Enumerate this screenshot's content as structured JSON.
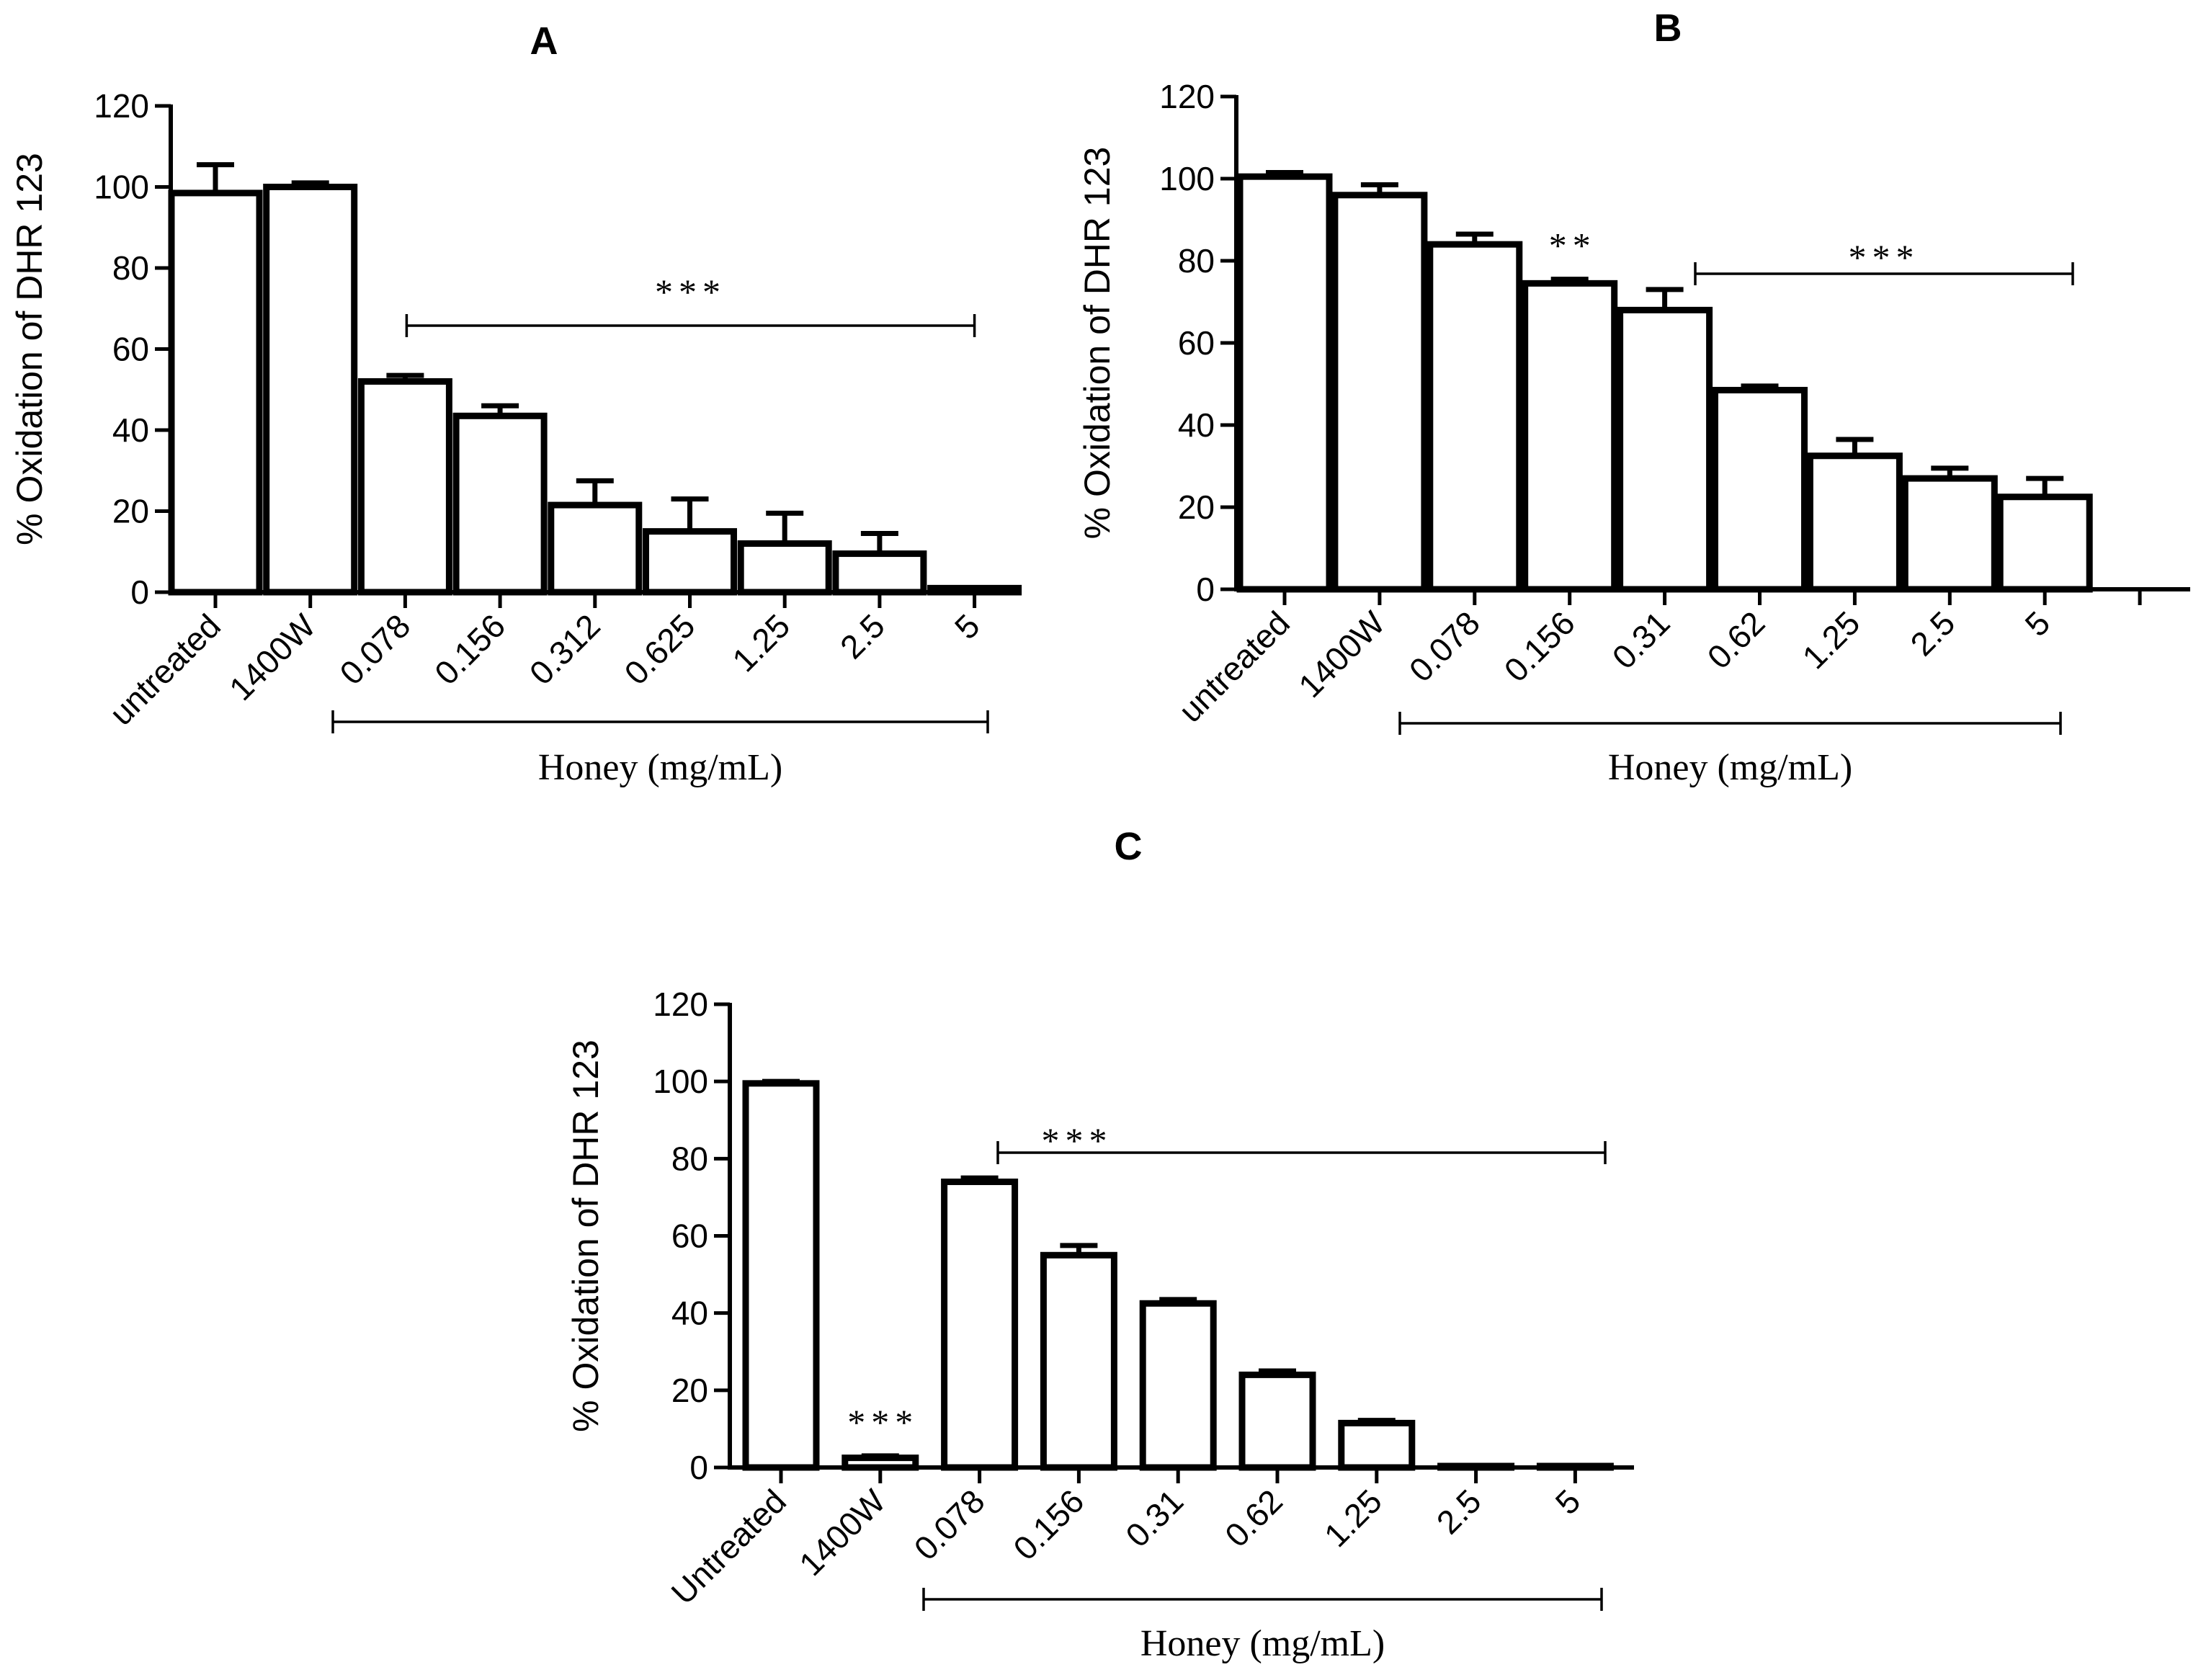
{
  "chart_data": [
    {
      "type": "bar",
      "panel": "A",
      "ylabel": "% Oxidation of DHR 123",
      "ylim": [
        0,
        120
      ],
      "yticks": [
        0,
        20,
        40,
        60,
        80,
        100,
        120
      ],
      "categories": [
        "untreated",
        "1400W",
        "0.078",
        "0.156",
        "0.312",
        "0.625",
        "1.25",
        "2.5",
        "5"
      ],
      "values": [
        98.5,
        100,
        52,
        43.5,
        21.5,
        15,
        12,
        9.5,
        1
      ],
      "errors": [
        7,
        1,
        1.5,
        2.5,
        6,
        8,
        7.5,
        5,
        0
      ],
      "group_label": "Honey (mg/mL)",
      "group_range": [
        2,
        8
      ],
      "significance": [
        {
          "label": "***",
          "from": 2,
          "to": 8
        }
      ]
    },
    {
      "type": "bar",
      "panel": "B",
      "ylabel": "% Oxidation of DHR 123",
      "ylim": [
        0,
        120
      ],
      "yticks": [
        0,
        20,
        40,
        60,
        80,
        100,
        120
      ],
      "categories": [
        "untreated",
        "1400W",
        "0.078",
        "0.156",
        "0.31",
        "0.62",
        "1.25",
        "2.5",
        "5",
        ""
      ],
      "values": [
        100.5,
        96,
        84,
        74.5,
        68,
        48.5,
        32.5,
        27,
        22.5,
        null
      ],
      "errors": [
        1,
        2.5,
        2.5,
        1,
        5,
        1,
        4,
        2.5,
        4.5,
        null
      ],
      "group_label": "Honey (mg/mL)",
      "group_range": [
        2,
        8
      ],
      "significance": [
        {
          "label": "**",
          "at": 3
        },
        {
          "label": "***",
          "from": 4.5,
          "to": 8
        }
      ]
    },
    {
      "type": "bar",
      "panel": "C",
      "ylabel": "% Oxidation of DHR 123",
      "ylim": [
        0,
        120
      ],
      "yticks": [
        0,
        20,
        40,
        60,
        80,
        100,
        120
      ],
      "categories": [
        "Untreated",
        "1400W",
        "0.078",
        "0.156",
        "0.31",
        "0.62",
        "1.25",
        "2.5",
        "5"
      ],
      "values": [
        99.5,
        2.5,
        74,
        55,
        42.5,
        24,
        11.5,
        0.2,
        0.2
      ],
      "errors": [
        0.5,
        0.5,
        1,
        2.5,
        1,
        1,
        0.7,
        0,
        0
      ],
      "group_label": "Honey (mg/mL)",
      "group_range": [
        2,
        8
      ],
      "significance": [
        {
          "label": "***",
          "at": 1
        },
        {
          "label": "***",
          "from": 2,
          "to": 8
        }
      ]
    }
  ]
}
